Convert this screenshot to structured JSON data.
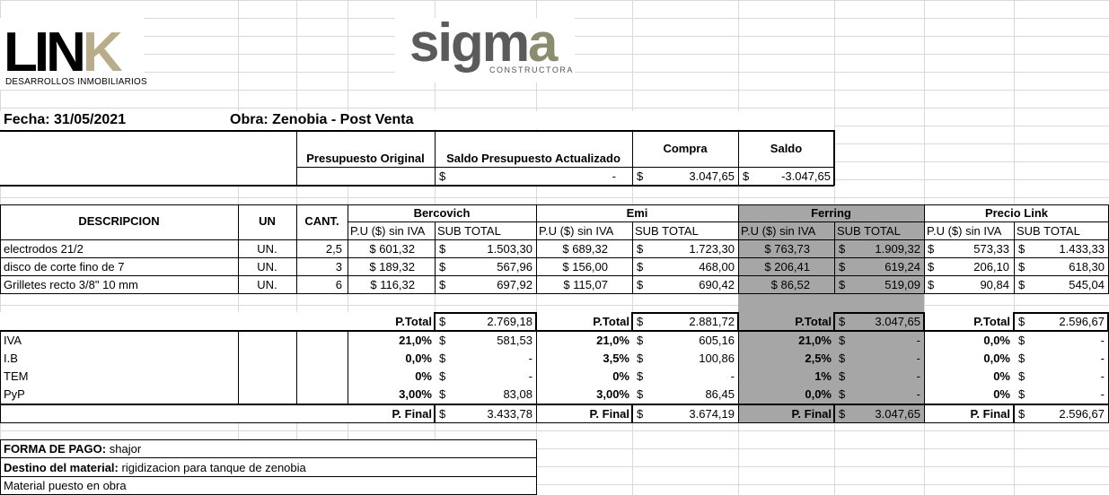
{
  "logos": {
    "link_main": "LIN",
    "link_k": "K",
    "link_sub": "DESARROLLOS INMOBILIARIOS",
    "sigma_main": "sigm",
    "sigma_a": "a",
    "sigma_sub": "CONSTRUCTORA"
  },
  "header": {
    "fecha": "Fecha: 31/05/2021",
    "obra": "Obra: Zenobia - Post Venta"
  },
  "summary": {
    "presupuesto_original": "Presupuesto Original",
    "saldo_actualizado": "Saldo Presupuesto Actualizado",
    "compra": "Compra",
    "saldo": "Saldo",
    "saldo_actualizado_value": "-",
    "compra_value": "3.047,65",
    "saldo_value": "-3.047,65"
  },
  "table": {
    "col_desc": "DESCRIPCION",
    "col_un": "UN",
    "col_cant": "CANT.",
    "pu_label": "P.U ($) sin IVA",
    "sub_label": "SUB TOTAL",
    "currency": "$",
    "suppliers": [
      "Bercovich",
      "Emi",
      "Ferring",
      "Precio Link"
    ],
    "rows": [
      {
        "desc": "electrodos 21/2",
        "un": "UN.",
        "cant": "2,5",
        "vals": [
          [
            "$ 601,32",
            "1.503,30"
          ],
          [
            "$ 689,32",
            "1.723,30"
          ],
          [
            "$ 763,73",
            "1.909,32"
          ],
          [
            "573,33",
            "1.433,33"
          ]
        ]
      },
      {
        "desc": "disco de corte fino de 7",
        "un": "UN.",
        "cant": "3",
        "vals": [
          [
            "$ 189,32",
            "567,96"
          ],
          [
            "$ 156,00",
            "468,00"
          ],
          [
            "$ 206,41",
            "619,24"
          ],
          [
            "206,10",
            "618,30"
          ]
        ]
      },
      {
        "desc": "Grilletes recto 3/8\" 10 mm",
        "un": "UN.",
        "cant": "6",
        "vals": [
          [
            "$ 116,32",
            "697,92"
          ],
          [
            "$ 115,07",
            "690,42"
          ],
          [
            "$ 86,52",
            "519,09"
          ],
          [
            "90,84",
            "545,04"
          ]
        ]
      }
    ]
  },
  "totals": {
    "ptotal_label": "P.Total",
    "pfinal_label": "P. Final",
    "ptotal": [
      "2.769,18",
      "2.881,72",
      "3.047,65",
      "2.596,67"
    ],
    "taxes": [
      {
        "name": "IVA",
        "pct": [
          "21,0%",
          "21,0%",
          "21,0%",
          "0,0%"
        ],
        "val": [
          "581,53",
          "605,16",
          "-",
          "-"
        ]
      },
      {
        "name": "I.B",
        "pct": [
          "0,0%",
          "3,5%",
          "2,5%",
          "0,0%"
        ],
        "val": [
          "-",
          "100,86",
          "-",
          "-"
        ]
      },
      {
        "name": "TEM",
        "pct": [
          "0%",
          "0%",
          "1%",
          "0%"
        ],
        "val": [
          "-",
          "-",
          "-",
          "-"
        ]
      },
      {
        "name": "PyP",
        "pct": [
          "3,00%",
          "3,00%",
          "0,0%",
          "0%"
        ],
        "val": [
          "83,08",
          "86,45",
          "-",
          "-"
        ]
      }
    ],
    "pfinal": [
      "3.433,78",
      "3.674,19",
      "3.047,65",
      "2.596,67"
    ]
  },
  "footer": {
    "forma_label": "FORMA DE PAGO:",
    "forma_value": "shajor",
    "destino_label": "Destino del material:",
    "destino_value": "rigidizacion para tanque de zenobia",
    "material": "Material puesto en obra"
  }
}
